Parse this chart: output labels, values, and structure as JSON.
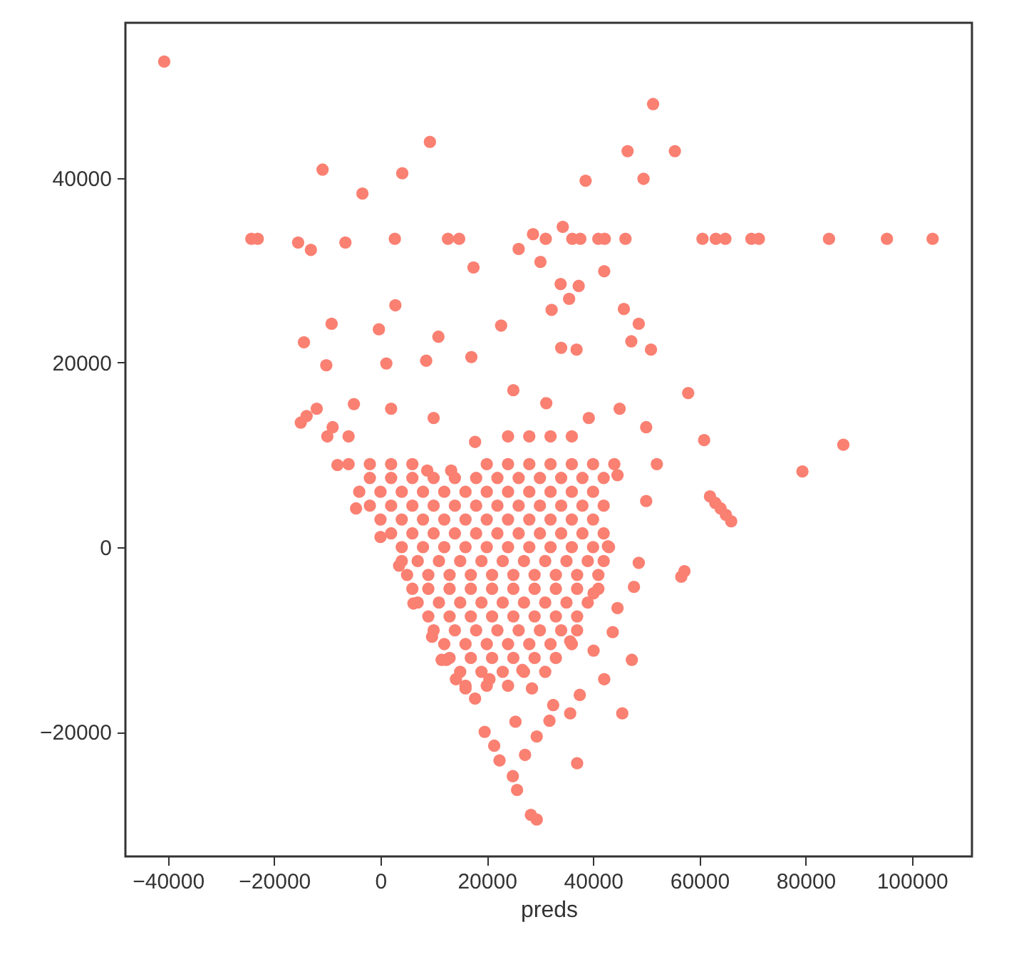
{
  "chart_data": {
    "type": "scatter",
    "xlabel": "preds",
    "color": "#fa8072",
    "marker": "circle",
    "grid": false,
    "xlim": [
      -48000,
      111300
    ],
    "ylim": [
      -33500,
      56800
    ],
    "xticks": [
      -40000,
      -20000,
      0,
      20000,
      40000,
      60000,
      80000,
      100000
    ],
    "yticks": [
      -20000,
      0,
      20000,
      40000
    ],
    "x": [
      -40700,
      51300,
      9300,
      46500,
      55400,
      -10900,
      4100,
      38600,
      49500,
      -3400,
      -24300,
      -23100,
      2700,
      12700,
      14800,
      31100,
      36100,
      37600,
      41000,
      42200,
      46100,
      60600,
      63100,
      64900,
      69800,
      71200,
      84400,
      95300,
      103900,
      -15500,
      -13100,
      -6600,
      28700,
      34300,
      17500,
      26000,
      30100,
      42100,
      33900,
      37300,
      35500,
      2800,
      45800,
      -9200,
      48600,
      -300,
      22700,
      32200,
      -14400,
      10900,
      47200,
      50900,
      -10200,
      1100,
      8600,
      17100,
      34000,
      36900,
      57900,
      60900,
      79400,
      87100,
      62000,
      63000,
      64000,
      65000,
      66000,
      56600,
      57200,
      47700,
      48600,
      44600,
      43700,
      47300,
      42100,
      40100,
      29400,
      28300,
      25700,
      24900,
      37000,
      22400,
      27200,
      29400,
      21400,
      19600,
      25400,
      31800,
      35700,
      45500,
      37500,
      32500,
      28500,
      17800,
      14200,
      20500,
      11500,
      -13900,
      -15000,
      -12000,
      -9000,
      -5000,
      -8100,
      -4600,
      0,
      3500,
      6200,
      9700,
      12400,
      16000,
      44600,
      42800,
      40100,
      35700,
      26700,
      17800,
      31200,
      39200,
      13300,
      8800,
      2000,
      10000,
      25000,
      45000,
      50000,
      52000,
      50000,
      24000,
      28000,
      32000,
      36000,
      -10000,
      -6000,
      -6000,
      -2000,
      2000,
      6000,
      20000,
      24000,
      28000,
      32000,
      36000,
      40000,
      44000,
      -4000,
      0,
      4000,
      8000,
      12000,
      16000,
      20000,
      24000,
      28000,
      32000,
      36000,
      40000,
      0,
      4000,
      8000,
      12000,
      16000,
      20000,
      24000,
      28000,
      32000,
      36000,
      40000,
      4000,
      8000,
      12000,
      16000,
      20000,
      24000,
      28000,
      32000,
      36000,
      40000,
      43000,
      5000,
      9000,
      13000,
      17000,
      21000,
      25000,
      29000,
      33000,
      37000,
      41000,
      7000,
      11000,
      15000,
      19000,
      23000,
      27000,
      31000,
      35000,
      39000,
      10000,
      14000,
      18000,
      22000,
      26000,
      30000,
      34000,
      37000,
      13000,
      17000,
      21000,
      25000,
      29000,
      33000,
      16000,
      20000,
      24000,
      -2000,
      2000,
      6000,
      10000,
      14000,
      18000,
      22000,
      26000,
      30000,
      34000,
      38000,
      42000,
      -2000,
      2000,
      6000,
      10000,
      14000,
      18000,
      22000,
      26000,
      30000,
      34000,
      38000,
      42000,
      2000,
      6000,
      10000,
      14000,
      18000,
      22000,
      26000,
      30000,
      34000,
      38000,
      42000,
      4000,
      7000,
      11000,
      15000,
      19000,
      23000,
      27000,
      31000,
      35000,
      39000,
      42000,
      6000,
      9000,
      13000,
      17000,
      21000,
      25000,
      29000,
      33000,
      37000,
      41000,
      9000,
      13000,
      17000,
      21000,
      25000,
      29000,
      33000,
      37000,
      12000,
      16000,
      20000,
      24000,
      28000,
      32000,
      36000,
      15000,
      19000,
      23000,
      27000,
      31000
    ],
    "values": [
      52600,
      48000,
      43900,
      42900,
      42900,
      40900,
      40500,
      39700,
      39900,
      38300,
      33400,
      33400,
      33400,
      33400,
      33400,
      33400,
      33400,
      33400,
      33400,
      33400,
      33400,
      33400,
      33400,
      33400,
      33400,
      33400,
      33400,
      33400,
      33400,
      33000,
      32200,
      33000,
      33900,
      34700,
      30300,
      32300,
      30900,
      29900,
      28500,
      28300,
      26900,
      26200,
      25800,
      24200,
      24200,
      23600,
      24000,
      25700,
      22200,
      22800,
      22300,
      21400,
      19700,
      19900,
      20200,
      20600,
      21600,
      21400,
      16700,
      11600,
      8200,
      11100,
      5500,
      4800,
      4200,
      3500,
      2800,
      -3200,
      -2600,
      -4300,
      -1700,
      -6600,
      -9200,
      -12200,
      -14300,
      -11200,
      -29500,
      -29000,
      -26300,
      -24800,
      -23400,
      -23100,
      -22500,
      -20500,
      -21500,
      -20000,
      -18900,
      -18800,
      -18000,
      -18000,
      -16000,
      -17100,
      -15300,
      -16400,
      -14300,
      -14300,
      -12200,
      14200,
      13500,
      15000,
      13000,
      15500,
      8900,
      4200,
      1100,
      -2000,
      -6100,
      -9700,
      -12200,
      -15300,
      7800,
      100,
      -5000,
      -10200,
      -13300,
      11400,
      15600,
      14000,
      8300,
      8300,
      15000,
      14000,
      17000,
      15000,
      13000,
      9000,
      5000,
      12000,
      12000,
      12000,
      12000,
      12000,
      12000,
      9000,
      9000,
      9000,
      9000,
      9000,
      9000,
      9000,
      9000,
      9000,
      9000,
      9000,
      6000,
      6000,
      6000,
      6000,
      6000,
      6000,
      6000,
      6000,
      6000,
      6000,
      6000,
      6000,
      3000,
      3000,
      3000,
      3000,
      3000,
      3000,
      3000,
      3000,
      3000,
      3000,
      3000,
      0,
      0,
      0,
      0,
      0,
      0,
      0,
      0,
      0,
      0,
      0,
      -3000,
      -3000,
      -3000,
      -3000,
      -3000,
      -3000,
      -3000,
      -3000,
      -3000,
      -3000,
      -6000,
      -6000,
      -6000,
      -6000,
      -6000,
      -6000,
      -6000,
      -6000,
      -6000,
      -9000,
      -9000,
      -9000,
      -9000,
      -9000,
      -9000,
      -9000,
      -9000,
      -12000,
      -12000,
      -12000,
      -12000,
      -12000,
      -12000,
      -15000,
      -15000,
      -15000,
      7500,
      7500,
      7500,
      7500,
      7500,
      7500,
      7500,
      7500,
      7500,
      7500,
      7500,
      7500,
      4500,
      4500,
      4500,
      4500,
      4500,
      4500,
      4500,
      4500,
      4500,
      4500,
      4500,
      4500,
      1500,
      1500,
      1500,
      1500,
      1500,
      1500,
      1500,
      1500,
      1500,
      1500,
      1500,
      -1500,
      -1500,
      -1500,
      -1500,
      -1500,
      -1500,
      -1500,
      -1500,
      -1500,
      -1500,
      -1500,
      -4500,
      -4500,
      -4500,
      -4500,
      -4500,
      -4500,
      -4500,
      -4500,
      -4500,
      -4500,
      -7500,
      -7500,
      -7500,
      -7500,
      -7500,
      -7500,
      -7500,
      -7500,
      -10500,
      -10500,
      -10500,
      -10500,
      -10500,
      -10500,
      -10500,
      -13500,
      -13500,
      -13500,
      -13500,
      -13500
    ]
  }
}
